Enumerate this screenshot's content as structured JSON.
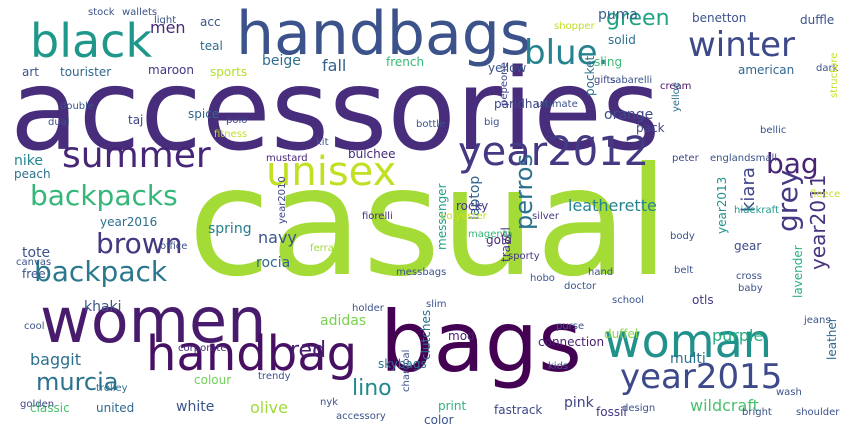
{
  "words": [
    {
      "text": "casual",
      "color": "#a5db36"
    },
    {
      "text": "accessories",
      "color": "#472d7b"
    },
    {
      "text": "bags",
      "color": "#440154"
    },
    {
      "text": "women",
      "color": "#481b6d"
    },
    {
      "text": "handbags",
      "color": "#3b528b"
    },
    {
      "text": "handbag",
      "color": "#471063"
    },
    {
      "text": "woman",
      "color": "#21918c"
    },
    {
      "text": "black",
      "color": "#1f988b"
    },
    {
      "text": "year2015",
      "color": "#3e4989"
    },
    {
      "text": "year2012",
      "color": "#443983"
    },
    {
      "text": "unisex",
      "color": "#c2df23"
    },
    {
      "text": "summer",
      "color": "#482677"
    },
    {
      "text": "winter",
      "color": "#3e4989"
    },
    {
      "text": "blue.",
      "color": "#26828e"
    },
    {
      "text": "backpacks",
      "color": "#35b779"
    },
    {
      "text": "brown",
      "color": "#453781"
    },
    {
      "text": "backpack",
      "color": "#2a788e"
    },
    {
      "text": "murcia",
      "color": "#2c728e"
    },
    {
      "text": "grey",
      "color": "#443a83"
    },
    {
      "text": "bag",
      "color": "#482475"
    },
    {
      "text": "green",
      "color": "#20a486"
    },
    {
      "text": "red",
      "color": "#481f70"
    },
    {
      "text": "perros",
      "color": "#2c728e"
    },
    {
      "text": "year2011",
      "color": "#46327e"
    },
    {
      "text": "lino",
      "color": "#23898e"
    },
    {
      "text": "leatherette",
      "color": "#25848e"
    },
    {
      "text": "wildcraft",
      "color": "#4ac16d"
    },
    {
      "text": "kiara",
      "color": "#404688"
    },
    {
      "text": "purple",
      "color": "#27ad81"
    },
    {
      "text": "laptop",
      "color": "#33638d"
    },
    {
      "text": "puma",
      "color": "#355f8d"
    },
    {
      "text": "navy",
      "color": "#3b528b"
    },
    {
      "text": "men",
      "color": "#482878"
    },
    {
      "text": "fall",
      "color": "#33638d"
    },
    {
      "text": "beige",
      "color": "#2e6e8e"
    },
    {
      "text": "olive",
      "color": "#9fda3a"
    },
    {
      "text": "white",
      "color": "#3a548c"
    },
    {
      "text": "orange",
      "color": "#3e4a89"
    },
    {
      "text": "pink",
      "color": "#414487"
    },
    {
      "text": "baggit",
      "color": "#2d708e"
    },
    {
      "text": "adidas",
      "color": "#7ad151"
    },
    {
      "text": "duffel",
      "color": "#86d549"
    },
    {
      "text": "nike",
      "color": "#24868e"
    },
    {
      "text": "year2016",
      "color": "#2d708e"
    },
    {
      "text": "year2013",
      "color": "#21918c"
    },
    {
      "text": "spring",
      "color": "#277f8e"
    },
    {
      "text": "tote",
      "color": "#3b528b"
    },
    {
      "text": "rocia",
      "color": "#31688e"
    },
    {
      "text": "messenger",
      "color": "#1f9e89"
    },
    {
      "text": "connection",
      "color": "#481f70"
    },
    {
      "text": "multi",
      "color": "#2d708e"
    },
    {
      "text": "khaki",
      "color": "#3b528b"
    },
    {
      "text": "classic",
      "color": "#4ac16d"
    },
    {
      "text": "united",
      "color": "#31688e"
    },
    {
      "text": "print",
      "color": "#2fb47c"
    },
    {
      "text": "fastrack",
      "color": "#3f4788"
    },
    {
      "text": "fossil",
      "color": "#453581"
    },
    {
      "text": "leather",
      "color": "#31688e"
    },
    {
      "text": "lavender",
      "color": "#2ab07f"
    },
    {
      "text": "hidekraft",
      "color": "#1f9a8a"
    },
    {
      "text": "englandsmall",
      "color": "#3b528b"
    },
    {
      "text": "peter",
      "color": "#3e4989"
    },
    {
      "text": "bulchee",
      "color": "#472a7a"
    },
    {
      "text": "mustard",
      "color": "#482677"
    },
    {
      "text": "spice",
      "color": "#31688e"
    },
    {
      "text": "taj",
      "color": "#414487"
    },
    {
      "text": "sling",
      "color": "#3dbc74"
    },
    {
      "text": "solid",
      "color": "#2d708e"
    },
    {
      "text": "duffle",
      "color": "#3a548c"
    },
    {
      "text": "benetton",
      "color": "#3b528b"
    },
    {
      "text": "american",
      "color": "#31688e"
    },
    {
      "text": "cream",
      "color": "#471063"
    },
    {
      "text": "yellow",
      "color": "#3b528b"
    },
    {
      "text": "french",
      "color": "#38b977"
    },
    {
      "text": "sports",
      "color": "#b5de2b"
    },
    {
      "text": "maroon",
      "color": "#453781"
    },
    {
      "text": "teal",
      "color": "#2e6e8e"
    },
    {
      "text": "tourister",
      "color": "#31688e"
    },
    {
      "text": "art",
      "color": "#3b528b"
    },
    {
      "text": "acc",
      "color": "#3b528b"
    },
    {
      "text": "gold",
      "color": "#482677"
    },
    {
      "text": "rocky",
      "color": "#453781"
    },
    {
      "text": "mod",
      "color": "#481f70"
    },
    {
      "text": "skybags",
      "color": "#2c728e"
    },
    {
      "text": "clutches",
      "color": "#2d708e"
    },
    {
      "text": "colour",
      "color": "#70cf57"
    },
    {
      "text": "color",
      "color": "#3a548c"
    },
    {
      "text": "nyk",
      "color": "#3b528b"
    },
    {
      "text": "free",
      "color": "#3b528b"
    },
    {
      "text": "otls",
      "color": "#453781"
    },
    {
      "text": "travel",
      "color": "#453781"
    },
    {
      "text": "paridhan",
      "color": "#3e4989"
    },
    {
      "text": "pocket",
      "color": "#2d708e"
    },
    {
      "text": "pack",
      "color": "#404688"
    },
    {
      "text": "yelloe",
      "color": "#2d708e"
    },
    {
      "text": "gear",
      "color": "#3e4989"
    },
    {
      "text": "peach",
      "color": "#2d708e"
    },
    {
      "text": "year2010",
      "color": "#404688"
    },
    {
      "text": "fiorelli",
      "color": "#472d7b"
    },
    {
      "text": "polyester",
      "color": "#c8e020"
    },
    {
      "text": "silver",
      "color": "#453781"
    },
    {
      "text": "ferrari",
      "color": "#a0da39"
    },
    {
      "text": "office",
      "color": "#3b528b"
    },
    {
      "text": "canvas",
      "color": "#3a548c"
    },
    {
      "text": "magenta",
      "color": "#35b779"
    },
    {
      "text": "sporty",
      "color": "#453781"
    },
    {
      "text": "corporate",
      "color": "#472d7b"
    },
    {
      "text": "trolley",
      "color": "#2d708e"
    },
    {
      "text": "golden",
      "color": "#404688"
    },
    {
      "text": "stock",
      "color": "#3b528b"
    },
    {
      "text": "wallets",
      "color": "#3b528b"
    },
    {
      "text": "light",
      "color": "#3b528b"
    },
    {
      "text": "shopper",
      "color": "#c2df23"
    },
    {
      "text": "gifts",
      "color": "#404688"
    },
    {
      "text": "sabarelli",
      "color": "#3b528b"
    },
    {
      "text": "fitness",
      "color": "#c2df23"
    },
    {
      "text": "pepeone",
      "color": "#404688"
    },
    {
      "text": "ultimate",
      "color": "#3b528b"
    },
    {
      "text": "polo",
      "color": "#404688"
    },
    {
      "text": "bellic",
      "color": "#3b528b"
    },
    {
      "text": "dark",
      "color": "#3b528b"
    },
    {
      "text": "structure",
      "color": "#c8e020"
    },
    {
      "text": "baby",
      "color": "#3b528b"
    },
    {
      "text": "accessory",
      "color": "#3b528b"
    },
    {
      "text": "design",
      "color": "#3b528b"
    },
    {
      "text": "shoulder",
      "color": "#3b528b"
    },
    {
      "text": "fleece",
      "color": "#c8e020"
    },
    {
      "text": "jeans",
      "color": "#3b528b"
    },
    {
      "text": "dual",
      "color": "#3b528b"
    },
    {
      "text": "double",
      "color": "#3b528b"
    },
    {
      "text": "big",
      "color": "#3b528b"
    },
    {
      "text": "slim",
      "color": "#3b528b"
    },
    {
      "text": "kit",
      "color": "#3b528b"
    },
    {
      "text": "bottle",
      "color": "#3b528b"
    },
    {
      "text": "messbags",
      "color": "#3b528b"
    },
    {
      "text": "holder",
      "color": "#3b528b"
    },
    {
      "text": "doctor",
      "color": "#3b528b"
    },
    {
      "text": "purse",
      "color": "#3b528b"
    },
    {
      "text": "school",
      "color": "#3b528b"
    },
    {
      "text": "hand",
      "color": "#3b528b"
    },
    {
      "text": "hobo",
      "color": "#3b528b"
    },
    {
      "text": "cross",
      "color": "#3b528b"
    },
    {
      "text": "body",
      "color": "#3b528b"
    },
    {
      "text": "belt",
      "color": "#3b528b"
    },
    {
      "text": "charcoal",
      "color": "#3b528b"
    },
    {
      "text": "kids",
      "color": "#3b528b"
    },
    {
      "text": "wash",
      "color": "#3b528b"
    },
    {
      "text": "bright",
      "color": "#3b528b"
    },
    {
      "text": "trendy",
      "color": "#3b528b"
    },
    {
      "text": "cool",
      "color": "#3b528b"
    }
  ]
}
